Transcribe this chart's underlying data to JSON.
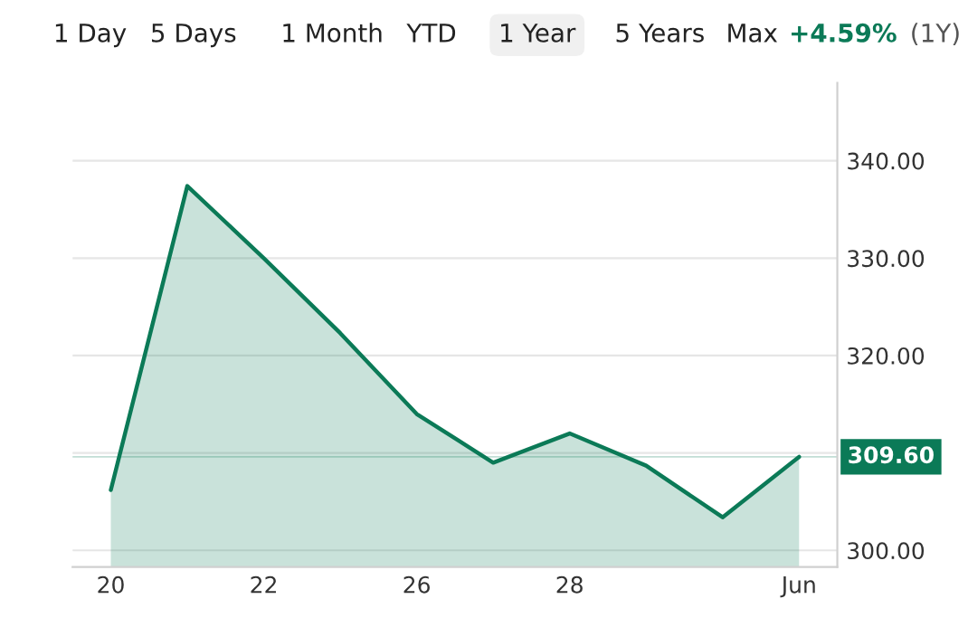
{
  "chart_data": {
    "type": "area",
    "categories": [
      "20",
      null,
      "22",
      null,
      "26",
      null,
      "28",
      null,
      null,
      "Jun"
    ],
    "series": [
      {
        "color": "#0b7a57",
        "values": [
          306.2,
          337.4,
          330.0,
          322.3,
          314.0,
          309.0,
          312.0,
          308.7,
          303.4,
          309.6
        ]
      }
    ],
    "ylim": [
      298.3,
      348
    ],
    "yticks": [
      {
        "value": 300,
        "label": "300.00"
      },
      {
        "value": 310,
        "label": null
      },
      {
        "value": 320,
        "label": "320.00"
      },
      {
        "value": 330,
        "label": "330.00"
      },
      {
        "value": 340,
        "label": "340.00"
      }
    ],
    "grid": "y",
    "annotations": [
      "1 Day",
      "5 Days",
      "1 Month",
      "YTD",
      "1 Year",
      "5 Years",
      "Max",
      "+4.59%",
      "(1Y)"
    ],
    "ref_lines": [
      {
        "axis": "y",
        "value": 309.6,
        "label": "309.60",
        "color": "#0b7a57"
      }
    ]
  }
}
